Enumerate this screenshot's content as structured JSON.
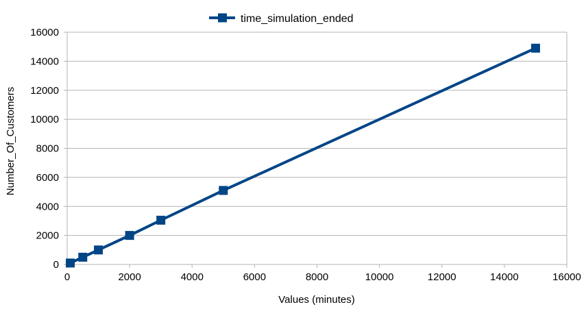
{
  "chart_data": {
    "type": "line",
    "series": [
      {
        "name": "time_simulation_ended",
        "x": [
          100,
          500,
          1000,
          2000,
          3000,
          5000,
          15000
        ],
        "y": [
          100,
          500,
          1000,
          2000,
          3050,
          5100,
          14900
        ]
      }
    ],
    "xlabel": "Values (minutes)",
    "ylabel": "Number_Of_Customers",
    "xlim": [
      0,
      16000
    ],
    "ylim": [
      0,
      16000
    ],
    "xticks": [
      0,
      2000,
      4000,
      6000,
      8000,
      10000,
      12000,
      14000,
      16000
    ],
    "yticks": [
      0,
      2000,
      4000,
      6000,
      8000,
      10000,
      12000,
      14000,
      16000
    ],
    "grid": "horizontal",
    "legend_position": "top-center",
    "colors": {
      "series": "#004586",
      "grid": "#b3b3b3",
      "axis": "#b3b3b3"
    }
  }
}
